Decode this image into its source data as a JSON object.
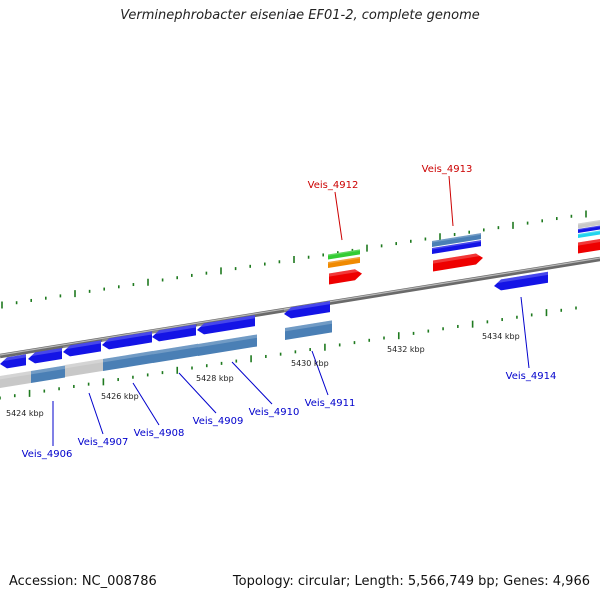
{
  "title": "Verminephrobacter eiseniae EF01-2, complete genome",
  "footer": {
    "accession": "Accession: NC_008786",
    "stats": "Topology: circular; Length: 5,566,749 bp; Genes: 4,966"
  },
  "colors": {
    "backbone": "#8a8a8a",
    "tick": "#1f7a1f",
    "forward_label": "#cc0000",
    "reverse_label": "#0000cc",
    "cds_blue": "#1414e6",
    "cds_steel": "#4a7fb5",
    "cds_grey": "#c8c8c8",
    "cds_red": "#ee0000",
    "cds_orange": "#f08a00",
    "cds_green": "#33cc33",
    "cds_cyan": "#22d4ee"
  },
  "scale_labels": [
    "5424 kbp",
    "5426 kbp",
    "5428 kbp",
    "5430 kbp",
    "5432 kbp",
    "5434 kbp"
  ],
  "forward_genes": [
    "Veis_4912",
    "Veis_4913"
  ],
  "reverse_genes": [
    "Veis_4906",
    "Veis_4907",
    "Veis_4908",
    "Veis_4909",
    "Veis_4910",
    "Veis_4911",
    "Veis_4914"
  ]
}
